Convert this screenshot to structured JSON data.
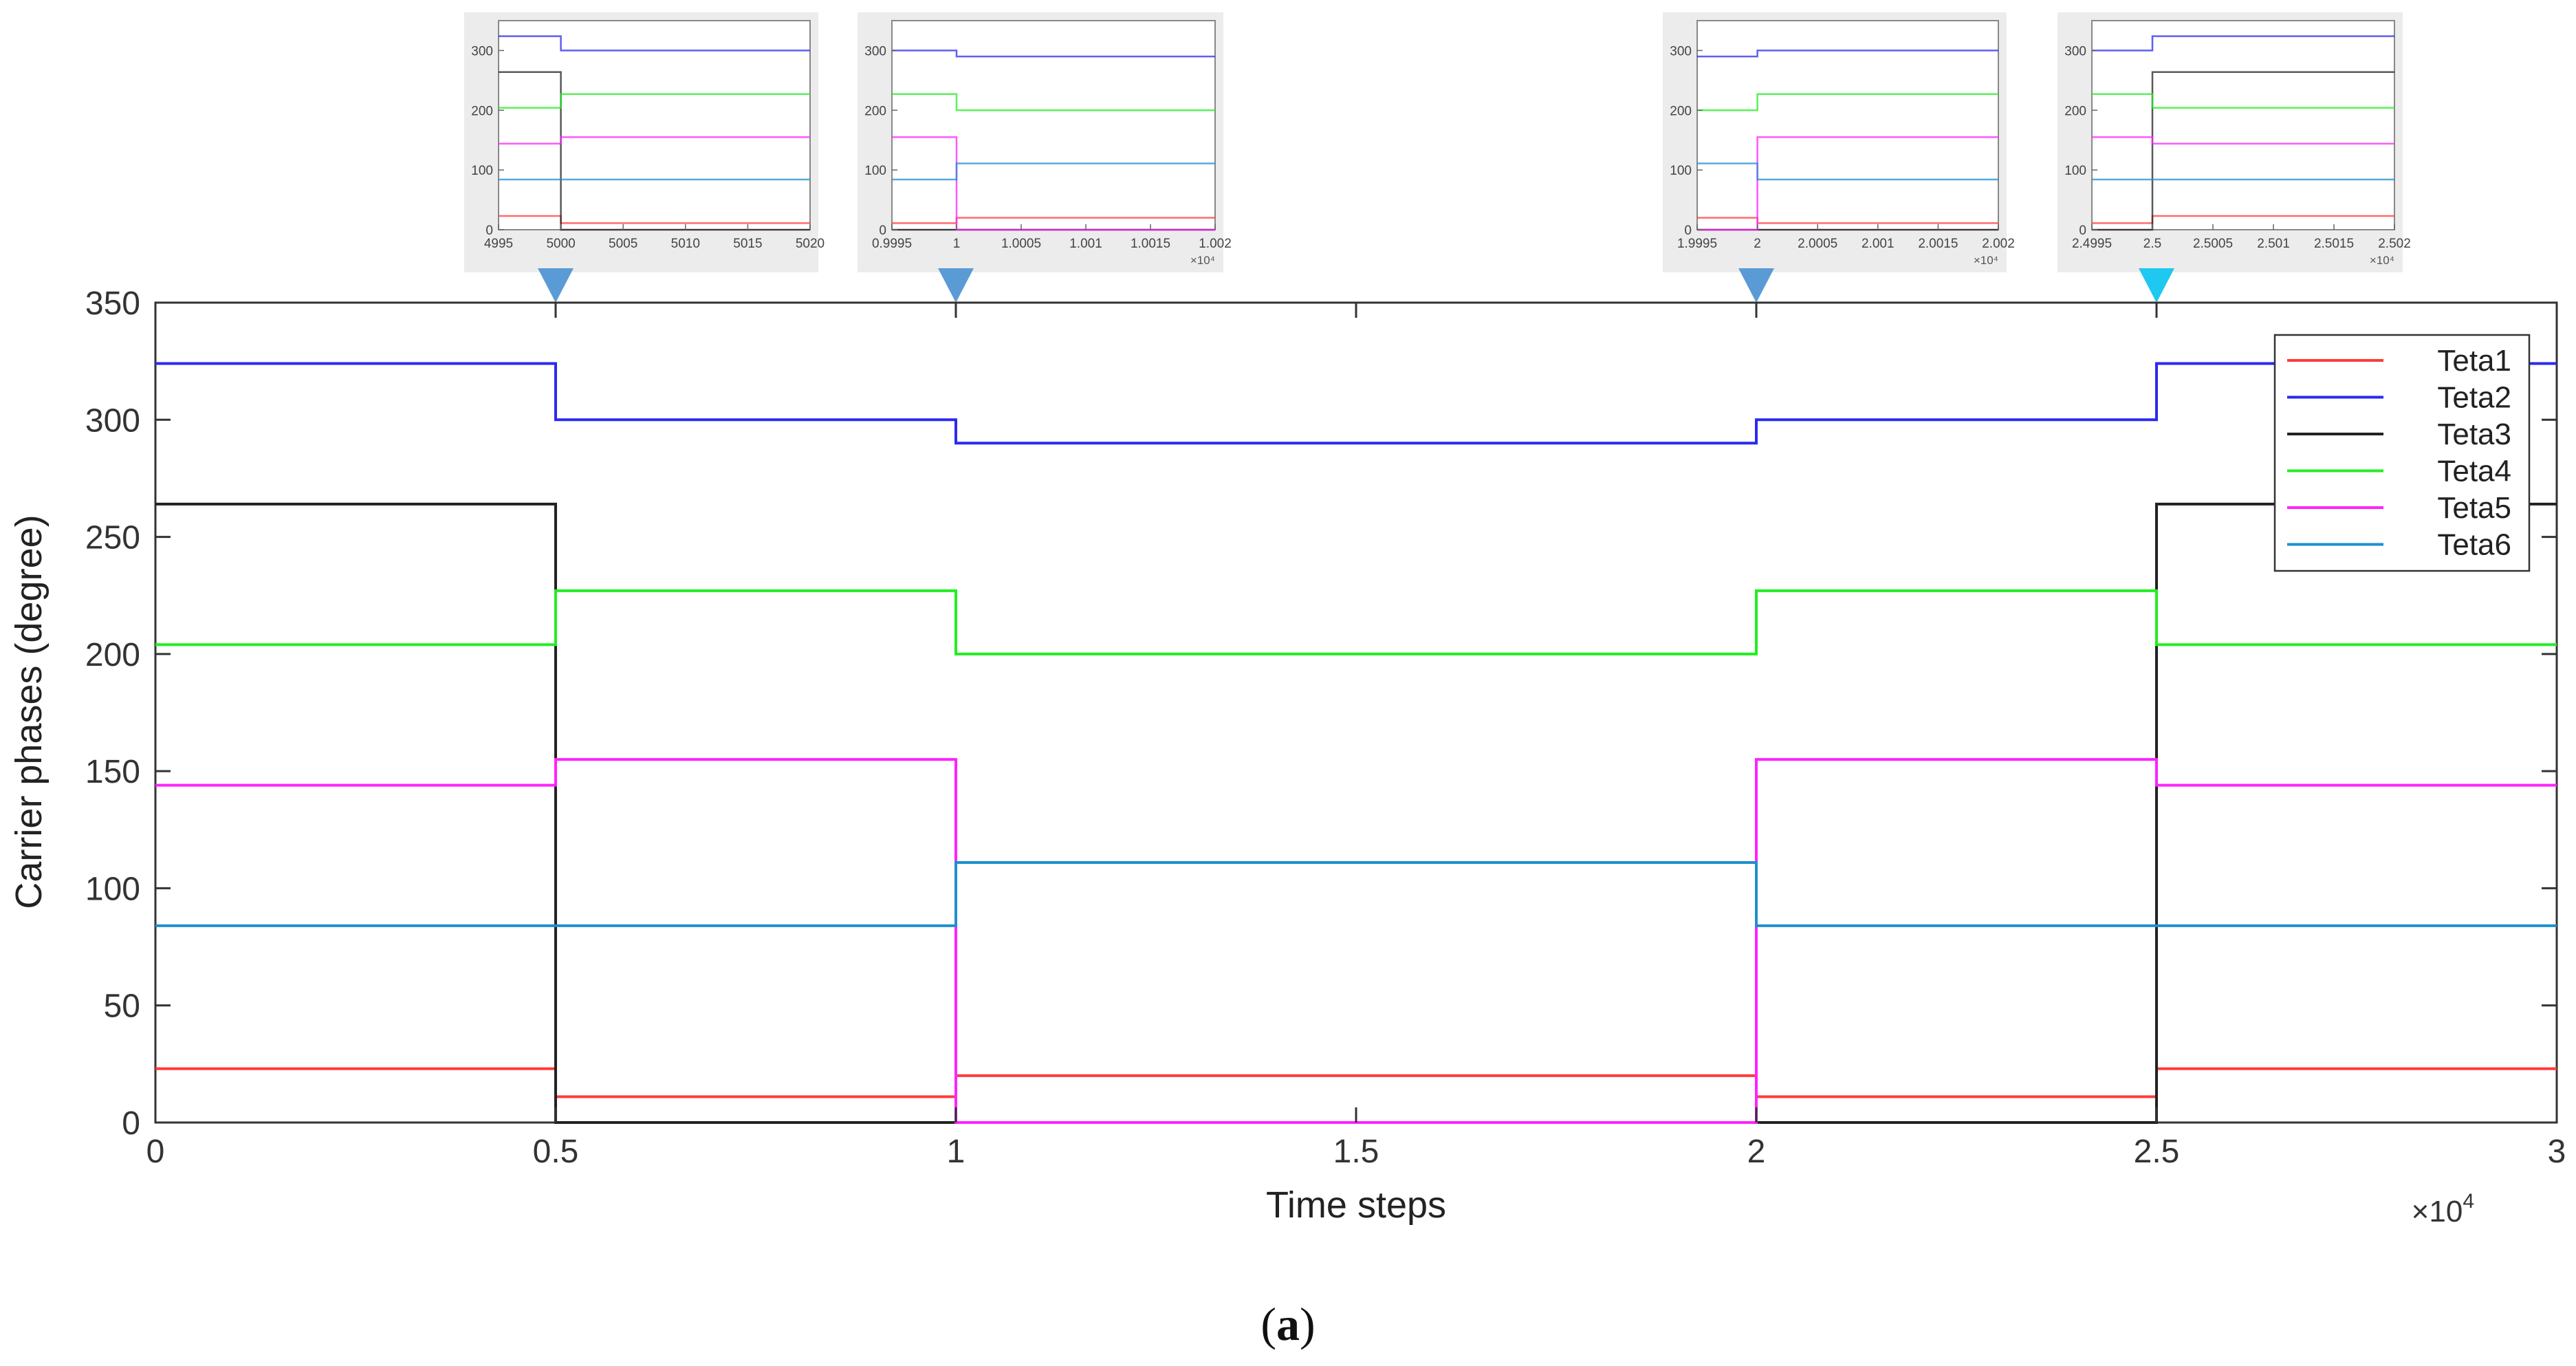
{
  "chart_data": {
    "type": "line",
    "step": true,
    "xlabel": "Time steps",
    "ylabel": "Carrier phases (degree)",
    "x_exponent_label": "×10",
    "x_exponent_power": "4",
    "xlim": [
      0,
      3
    ],
    "ylim": [
      0,
      350
    ],
    "xticks": [
      0,
      0.5,
      1,
      1.5,
      2,
      2.5,
      3
    ],
    "xtick_labels": [
      "0",
      "0.5",
      "1",
      "1.5",
      "2",
      "2.5",
      "3"
    ],
    "yticks": [
      0,
      50,
      100,
      150,
      200,
      250,
      300,
      350
    ],
    "ytick_labels": [
      "0",
      "50",
      "100",
      "150",
      "200",
      "250",
      "300",
      "350"
    ],
    "grid": false,
    "legend_position": "top-right",
    "caption_letter": "a",
    "series": [
      {
        "name": "Teta1",
        "color": "#ff3b3b",
        "x": [
          0,
          0.5,
          0.5,
          1,
          1,
          2,
          2,
          2.5,
          2.5,
          3
        ],
        "y": [
          23,
          23,
          11,
          11,
          20,
          20,
          11,
          11,
          23,
          23
        ]
      },
      {
        "name": "Teta2",
        "color": "#2a2af0",
        "x": [
          0,
          0.5,
          0.5,
          1,
          1,
          2,
          2,
          2.5,
          2.5,
          3
        ],
        "y": [
          324,
          324,
          300,
          300,
          290,
          290,
          300,
          300,
          324,
          324
        ]
      },
      {
        "name": "Teta3",
        "color": "#222222",
        "x": [
          0,
          0.5,
          0.5,
          1,
          1,
          2,
          2,
          2.5,
          2.5,
          3
        ],
        "y": [
          264,
          264,
          0,
          0,
          0,
          0,
          0,
          0,
          264,
          264
        ]
      },
      {
        "name": "Teta4",
        "color": "#22ee22",
        "x": [
          0,
          0.5,
          0.5,
          1,
          1,
          2,
          2,
          2.5,
          2.5,
          3
        ],
        "y": [
          204,
          204,
          227,
          227,
          200,
          200,
          227,
          227,
          204,
          204
        ]
      },
      {
        "name": "Teta5",
        "color": "#ff22ff",
        "x": [
          0,
          0.5,
          0.5,
          1,
          1,
          2,
          2,
          2.5,
          2.5,
          3
        ],
        "y": [
          144,
          144,
          155,
          155,
          0,
          0,
          155,
          155,
          144,
          144
        ]
      },
      {
        "name": "Teta6",
        "color": "#1e8fd0",
        "x": [
          0,
          0.5,
          0.5,
          1,
          1,
          2,
          2,
          2.5,
          2.5,
          3
        ],
        "y": [
          84,
          84,
          84,
          84,
          111,
          111,
          84,
          84,
          84,
          84
        ]
      }
    ],
    "insets": [
      {
        "name": "zoom-5000",
        "at_x": 0.5,
        "arrow_color": "#5b9bd5",
        "xticks": [
          "4995",
          "5000",
          "5005",
          "5010",
          "5015",
          "5020"
        ],
        "x_exponent": "",
        "yticks": [
          "0",
          "100",
          "200",
          "300"
        ],
        "before": [
          23,
          324,
          264,
          204,
          144,
          84
        ],
        "after": [
          11,
          300,
          0,
          227,
          155,
          84
        ]
      },
      {
        "name": "zoom-10000",
        "at_x": 1,
        "arrow_color": "#5b9bd5",
        "xticks": [
          "0.9995",
          "1",
          "1.0005",
          "1.001",
          "1.0015",
          "1.002"
        ],
        "x_exponent": "×10⁴",
        "yticks": [
          "0",
          "100",
          "200",
          "300"
        ],
        "before": [
          11,
          300,
          0,
          227,
          155,
          84
        ],
        "after": [
          20,
          290,
          0,
          200,
          0,
          111
        ]
      },
      {
        "name": "zoom-20000",
        "at_x": 2,
        "arrow_color": "#5b9bd5",
        "xticks": [
          "1.9995",
          "2",
          "2.0005",
          "2.001",
          "2.0015",
          "2.002"
        ],
        "x_exponent": "×10⁴",
        "yticks": [
          "0",
          "100",
          "200",
          "300"
        ],
        "before": [
          20,
          290,
          0,
          200,
          0,
          111
        ],
        "after": [
          11,
          300,
          0,
          227,
          155,
          84
        ]
      },
      {
        "name": "zoom-25000",
        "at_x": 2.5,
        "arrow_color": "#1ec8f0",
        "xticks": [
          "2.4995",
          "2.5",
          "2.5005",
          "2.501",
          "2.5015",
          "2.502"
        ],
        "x_exponent": "×10⁴",
        "yticks": [
          "0",
          "100",
          "200",
          "300"
        ],
        "before": [
          11,
          300,
          0,
          227,
          155,
          84
        ],
        "after": [
          23,
          324,
          264,
          204,
          144,
          84
        ]
      }
    ]
  }
}
